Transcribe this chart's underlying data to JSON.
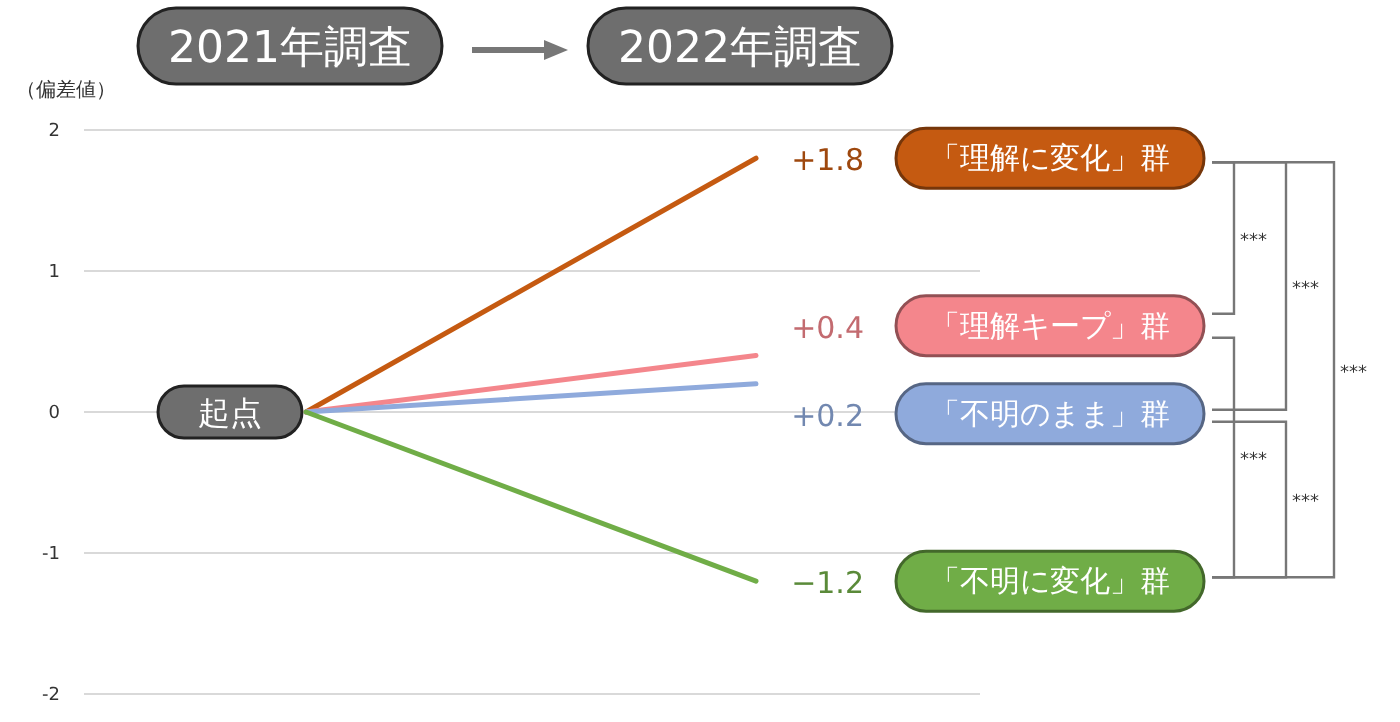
{
  "chart_data": {
    "type": "line",
    "categories": [
      "2021年調査",
      "2022年調査"
    ],
    "ylabel": "（偏差値）",
    "ylim": [
      -2,
      2
    ],
    "yticks": [
      2,
      1,
      0,
      -1,
      -2
    ],
    "grid": "y",
    "series": [
      {
        "name": "「理解に変化」群",
        "color": "#c55a11",
        "values": [
          0,
          1.8
        ],
        "value_labels": [
          null,
          "+1.8"
        ]
      },
      {
        "name": "「理解キープ」群",
        "color": "#f4868c",
        "values": [
          0,
          0.4
        ],
        "value_labels": [
          null,
          "+0.4"
        ]
      },
      {
        "name": "「不明のまま」群",
        "color": "#8faadc",
        "values": [
          0,
          0.2
        ],
        "value_labels": [
          null,
          "+0.2"
        ]
      },
      {
        "name": "「不明に変化」群",
        "color": "#70ad47",
        "values": [
          0,
          -1.2
        ],
        "value_labels": [
          null,
          "−1.2"
        ]
      }
    ],
    "annotations": [
      "起点",
      "***",
      "***",
      "***",
      "***",
      "***"
    ]
  }
}
